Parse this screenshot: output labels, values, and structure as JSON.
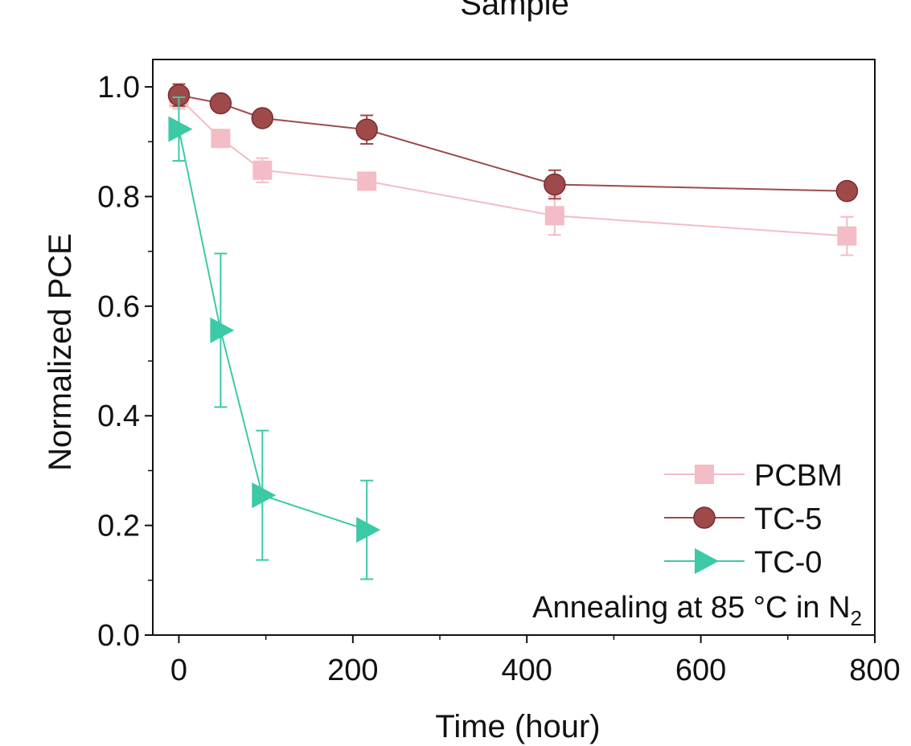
{
  "chart_data": {
    "type": "line",
    "title": "Sample",
    "xlabel": "Time (hour)",
    "ylabel": "Normalized PCE",
    "xlim": [
      -30,
      800
    ],
    "ylim": [
      0.0,
      1.05
    ],
    "x_ticks": [
      0,
      200,
      400,
      600,
      800
    ],
    "x_tick_labels": [
      "0",
      "200",
      "400",
      "600",
      "800"
    ],
    "y_ticks": [
      0.0,
      0.2,
      0.4,
      0.6,
      0.8,
      1.0
    ],
    "y_tick_labels": [
      "0.0",
      "0.2",
      "0.4",
      "0.6",
      "0.8",
      "1.0"
    ],
    "legend_position": "bottom-right",
    "annotation": {
      "text": "Annealing at 85 °C in N",
      "subscript": "2"
    },
    "series": [
      {
        "name": "PCBM",
        "marker": "square",
        "color": "#f4bcc4",
        "x": [
          0,
          48,
          96,
          216,
          432,
          768
        ],
        "y": [
          0.98,
          0.906,
          0.848,
          0.828,
          0.765,
          0.728
        ],
        "yerr": [
          0.02,
          0.012,
          0.022,
          0.012,
          0.035,
          0.035
        ]
      },
      {
        "name": "TC-5",
        "marker": "circle",
        "color": "#9e4a4a",
        "x": [
          0,
          48,
          96,
          216,
          432,
          768
        ],
        "y": [
          0.985,
          0.97,
          0.943,
          0.922,
          0.822,
          0.81
        ],
        "yerr": [
          0.02,
          0.012,
          0.012,
          0.026,
          0.026,
          0.012
        ]
      },
      {
        "name": "TC-0",
        "marker": "triangle-right",
        "color": "#3cc9a6",
        "x": [
          0,
          48,
          96,
          216
        ],
        "y": [
          0.923,
          0.556,
          0.255,
          0.192
        ],
        "yerr": [
          0.058,
          0.14,
          0.118,
          0.09
        ]
      }
    ]
  }
}
